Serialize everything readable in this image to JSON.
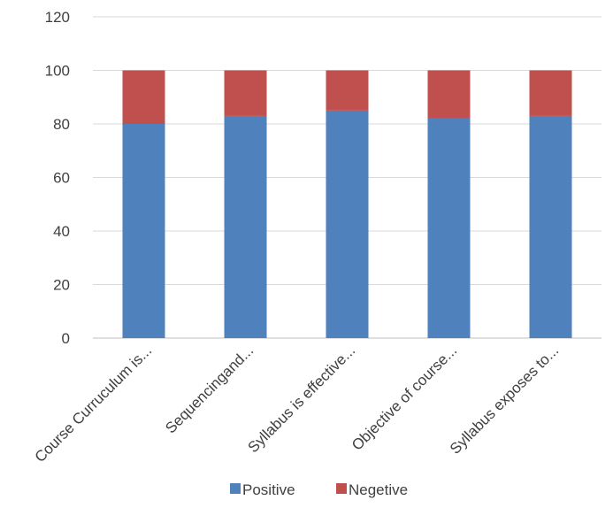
{
  "chart_data": {
    "type": "bar",
    "stacked": true,
    "categories": [
      "Course Curruculum is...",
      "Sequencingand...",
      "Syllabus is effective...",
      "Objective of course...",
      "Syllabus exposes to..."
    ],
    "series": [
      {
        "name": "Positive",
        "color": "#4f81bd",
        "values": [
          80,
          83,
          85,
          82,
          83
        ]
      },
      {
        "name": "Negetive",
        "color": "#c0504d",
        "values": [
          20,
          17,
          15,
          18,
          17
        ]
      }
    ],
    "ylim": [
      0,
      120
    ],
    "yticks": [
      0,
      20,
      40,
      60,
      80,
      100,
      120
    ],
    "grid": true,
    "legend": "bottom"
  }
}
